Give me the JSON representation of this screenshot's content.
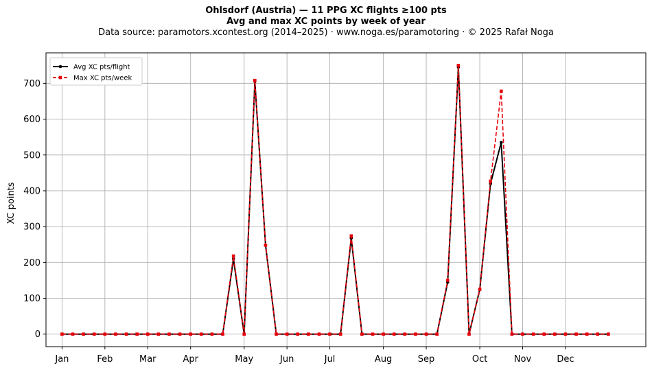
{
  "header": {
    "title": "Ohlsdorf (Austria)  —  11 PPG XC flights ≥100 pts",
    "title2": "Avg and max XC points by week of year",
    "source": "Data source: paramotors.xcontest.org (2014–2025)  ·  www.noga.es/paramotoring  ·  © 2025 Rafał Noga"
  },
  "chart_data": {
    "type": "line",
    "ylabel": "XC points",
    "xlabel": "",
    "ylim": [
      -35,
      785
    ],
    "xlim": [
      -1.5,
      54.5
    ],
    "yticks": [
      0,
      100,
      200,
      300,
      400,
      500,
      600,
      700
    ],
    "xticks": [
      {
        "label": "Jan",
        "week": 0
      },
      {
        "label": "Feb",
        "week": 4
      },
      {
        "label": "Mar",
        "week": 8
      },
      {
        "label": "Apr",
        "week": 12
      },
      {
        "label": "May",
        "week": 17
      },
      {
        "label": "Jun",
        "week": 21
      },
      {
        "label": "Jul",
        "week": 25
      },
      {
        "label": "Aug",
        "week": 30
      },
      {
        "label": "Sep",
        "week": 34
      },
      {
        "label": "Oct",
        "week": 39
      },
      {
        "label": "Nov",
        "week": 43
      },
      {
        "label": "Dec",
        "week": 47
      }
    ],
    "grid": true,
    "legend_position": "upper-left",
    "x": [
      0,
      1,
      2,
      3,
      4,
      5,
      6,
      7,
      8,
      9,
      10,
      11,
      12,
      13,
      14,
      15,
      16,
      17,
      18,
      19,
      20,
      21,
      22,
      23,
      24,
      25,
      26,
      27,
      28,
      29,
      30,
      31,
      32,
      33,
      34,
      35,
      36,
      37,
      38,
      39,
      40,
      41,
      42,
      43,
      44,
      45,
      46,
      47,
      48,
      49,
      50,
      51
    ],
    "series": [
      {
        "name": "Avg XC pts/flight",
        "color": "#000000",
        "style": "solid",
        "marker": "circle",
        "values": [
          0,
          0,
          0,
          0,
          0,
          0,
          0,
          0,
          0,
          0,
          0,
          0,
          0,
          0,
          0,
          0,
          210,
          0,
          705,
          248,
          0,
          0,
          0,
          0,
          0,
          0,
          0,
          268,
          0,
          0,
          0,
          0,
          0,
          0,
          0,
          0,
          145,
          745,
          0,
          125,
          420,
          535,
          0,
          0,
          0,
          0,
          0,
          0,
          0,
          0,
          0,
          0
        ]
      },
      {
        "name": "Max XC pts/week",
        "color": "#e8000b",
        "style": "dashed",
        "marker": "square",
        "values": [
          0,
          0,
          0,
          0,
          0,
          0,
          0,
          0,
          0,
          0,
          0,
          0,
          0,
          0,
          0,
          0,
          218,
          0,
          708,
          248,
          0,
          0,
          0,
          0,
          0,
          0,
          0,
          274,
          0,
          0,
          0,
          0,
          0,
          0,
          0,
          0,
          150,
          750,
          0,
          125,
          427,
          678,
          0,
          0,
          0,
          0,
          0,
          0,
          0,
          0,
          0,
          0
        ]
      }
    ]
  }
}
